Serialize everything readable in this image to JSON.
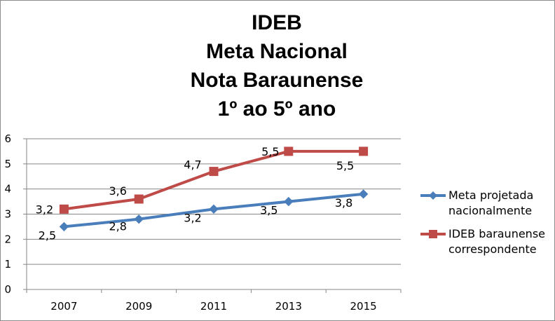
{
  "chart_data": {
    "type": "line",
    "title_lines": [
      "IDEB",
      "Meta Nacional",
      "Nota Baraunense",
      "1º ao 5º ano"
    ],
    "categories": [
      "2007",
      "2009",
      "2011",
      "2013",
      "2015"
    ],
    "ylim": [
      0,
      6
    ],
    "yticks": [
      "0",
      "1",
      "2",
      "3",
      "4",
      "5",
      "6"
    ],
    "grid": true,
    "legend_position": "right",
    "series": [
      {
        "name_lines": [
          "Meta projetada",
          "nacionalmente"
        ],
        "values": [
          2.5,
          2.8,
          3.2,
          3.5,
          3.8
        ],
        "labels": [
          "2,5",
          "2,8",
          "3,2",
          "3,5",
          "3,8"
        ],
        "color": "#4a7ebb",
        "marker": "diamond"
      },
      {
        "name_lines": [
          "IDEB baraunense",
          "correspondente"
        ],
        "values": [
          3.2,
          3.6,
          4.7,
          5.5,
          5.5
        ],
        "labels": [
          "3,2",
          "3,6",
          "4,7",
          "5,5",
          "5,5"
        ],
        "color": "#be4b48",
        "marker": "square"
      }
    ]
  }
}
